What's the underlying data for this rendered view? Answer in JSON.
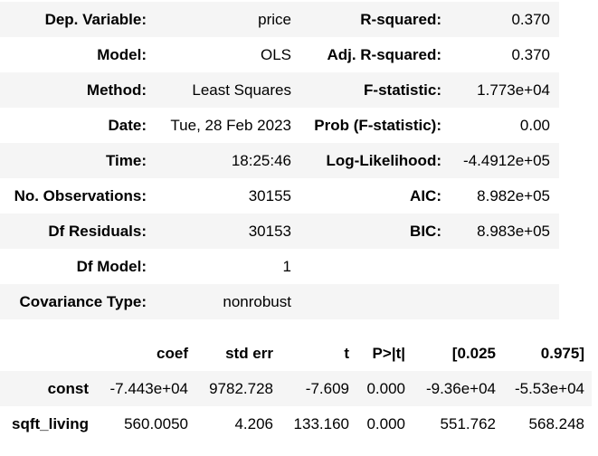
{
  "summary": {
    "rows": [
      {
        "left_label": "Dep. Variable:",
        "left_value": "price",
        "right_label": "R-squared:",
        "right_value": "0.370"
      },
      {
        "left_label": "Model:",
        "left_value": "OLS",
        "right_label": "Adj. R-squared:",
        "right_value": "0.370"
      },
      {
        "left_label": "Method:",
        "left_value": "Least Squares",
        "right_label": "F-statistic:",
        "right_value": "1.773e+04"
      },
      {
        "left_label": "Date:",
        "left_value": "Tue, 28 Feb 2023",
        "right_label": "Prob (F-statistic):",
        "right_value": "0.00"
      },
      {
        "left_label": "Time:",
        "left_value": "18:25:46",
        "right_label": "Log-Likelihood:",
        "right_value": "-4.4912e+05"
      },
      {
        "left_label": "No. Observations:",
        "left_value": "30155",
        "right_label": "AIC:",
        "right_value": "8.982e+05"
      },
      {
        "left_label": "Df Residuals:",
        "left_value": "30153",
        "right_label": "BIC:",
        "right_value": "8.983e+05"
      },
      {
        "left_label": "Df Model:",
        "left_value": "1",
        "right_label": "",
        "right_value": ""
      },
      {
        "left_label": "Covariance Type:",
        "left_value": "nonrobust",
        "right_label": "",
        "right_value": ""
      }
    ]
  },
  "coefficients": {
    "headers": [
      "",
      "coef",
      "std err",
      "t",
      "P>|t|",
      "[0.025",
      "0.975]"
    ],
    "rows": [
      {
        "name": "const",
        "coef": "-7.443e+04",
        "std_err": "9782.728",
        "t": "-7.609",
        "p": "0.000",
        "ci_low": "-9.36e+04",
        "ci_high": "-5.53e+04"
      },
      {
        "name": "sqft_living",
        "coef": "560.0050",
        "std_err": "4.206",
        "t": "133.160",
        "p": "0.000",
        "ci_low": "551.762",
        "ci_high": "568.248"
      }
    ]
  }
}
